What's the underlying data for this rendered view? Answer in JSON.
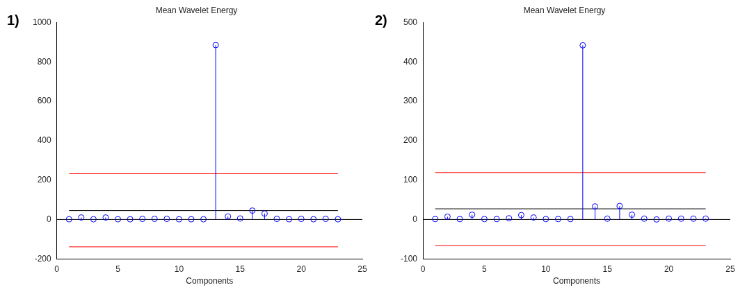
{
  "chart_data": [
    {
      "type": "lollipop",
      "title": "Mean Wavelet Energy",
      "xlabel": "Components",
      "annotations": [
        "1)"
      ],
      "x": [
        1,
        2,
        3,
        4,
        5,
        6,
        7,
        8,
        9,
        10,
        11,
        12,
        13,
        14,
        15,
        16,
        17,
        18,
        19,
        20,
        21,
        22,
        23
      ],
      "series": [
        {
          "color": "#0000ff",
          "values": [
            1,
            10,
            1,
            10,
            1,
            1,
            3,
            3,
            3,
            1,
            1,
            1,
            885,
            15,
            5,
            45,
            30,
            3,
            1,
            3,
            1,
            3,
            1
          ]
        }
      ],
      "xlim": [
        0,
        25
      ],
      "xticks": [
        0,
        5,
        10,
        15,
        20,
        25
      ],
      "ylim": [
        -200,
        1000
      ],
      "yticks": [
        -200,
        0,
        200,
        400,
        600,
        800,
        1000
      ],
      "grid": false,
      "legend": false,
      "marker": "circle",
      "ref_lines": [
        {
          "axis": "y",
          "value": 232,
          "color": "#ff0000"
        },
        {
          "axis": "y",
          "value": -139,
          "color": "#ff0000"
        },
        {
          "axis": "y",
          "value": 45,
          "color": "#000000"
        },
        {
          "axis": "y",
          "value": 0,
          "color": "#000000"
        }
      ]
    },
    {
      "type": "lollipop",
      "title": "Mean Wavelet Energy",
      "xlabel": "Components",
      "annotations": [
        "2)"
      ],
      "x": [
        1,
        2,
        3,
        4,
        5,
        6,
        7,
        8,
        9,
        10,
        11,
        12,
        13,
        14,
        15,
        16,
        17,
        18,
        19,
        20,
        21,
        22,
        23
      ],
      "series": [
        {
          "color": "#0000ff",
          "values": [
            1,
            7,
            1,
            12,
            1,
            1,
            3,
            11,
            5,
            1,
            1,
            1,
            442,
            33,
            2,
            34,
            12,
            2,
            0,
            2,
            2,
            2,
            2
          ]
        }
      ],
      "xlim": [
        0,
        25
      ],
      "xticks": [
        0,
        5,
        10,
        15,
        20,
        25
      ],
      "ylim": [
        -100,
        500
      ],
      "yticks": [
        -100,
        0,
        100,
        200,
        300,
        400,
        500
      ],
      "grid": false,
      "legend": false,
      "marker": "circle",
      "ref_lines": [
        {
          "axis": "y",
          "value": 119,
          "color": "#ff0000"
        },
        {
          "axis": "y",
          "value": -66,
          "color": "#ff0000"
        },
        {
          "axis": "y",
          "value": 27,
          "color": "#000000"
        },
        {
          "axis": "y",
          "value": 0,
          "color": "#000000"
        }
      ]
    }
  ]
}
